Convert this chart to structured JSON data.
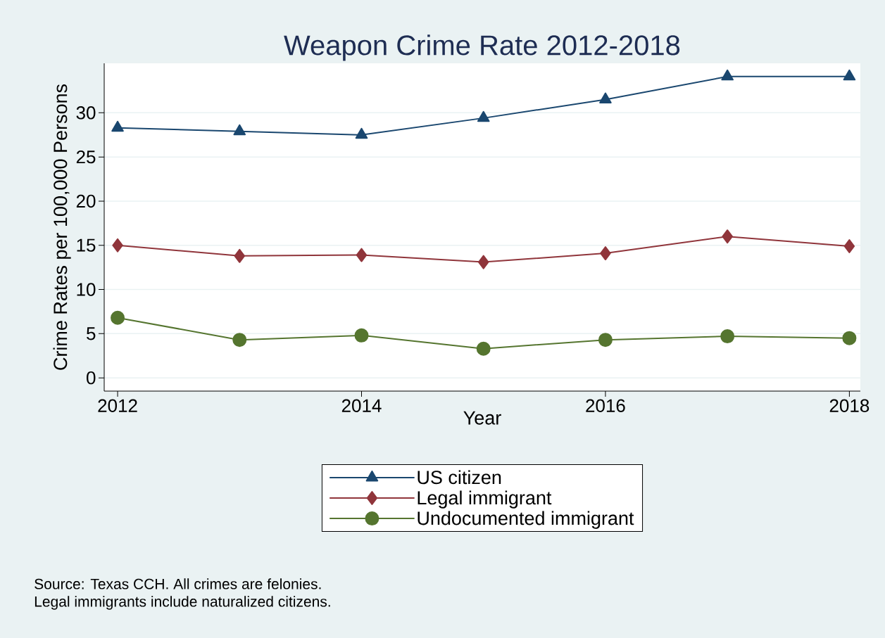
{
  "chart_data": {
    "type": "line",
    "title": "Weapon Crime Rate 2012-2018",
    "xlabel": "Year",
    "ylabel": "Crime Rates per 100,000 Persons",
    "x": [
      2012,
      2013,
      2014,
      2015,
      2016,
      2017,
      2018
    ],
    "series": [
      {
        "name": "US citizen",
        "color": "#1a476f",
        "marker": "triangle",
        "values": [
          28.3,
          27.9,
          27.5,
          29.4,
          31.5,
          34.1,
          34.1
        ]
      },
      {
        "name": "Legal immigrant",
        "color": "#90353b",
        "marker": "diamond",
        "values": [
          15.0,
          13.8,
          13.9,
          13.1,
          14.1,
          16.0,
          14.9
        ]
      },
      {
        "name": "Undocumented immigrant",
        "color": "#55752f",
        "marker": "circle",
        "values": [
          6.8,
          4.3,
          4.8,
          3.3,
          4.3,
          4.7,
          4.5
        ]
      }
    ],
    "xlim": [
      2011.89,
      2018.09
    ],
    "ylim": [
      -1.5,
      35.6
    ],
    "xticks": [
      2012,
      2014,
      2016,
      2018
    ],
    "yticks": [
      0,
      5,
      10,
      15,
      20,
      25,
      30
    ],
    "grid": "y",
    "legend": "bottom",
    "line_style": "solid",
    "annotations": [
      "Source: Texas CCH. All crimes are felonies.",
      "Legal immigrants include naturalized citizens."
    ]
  }
}
